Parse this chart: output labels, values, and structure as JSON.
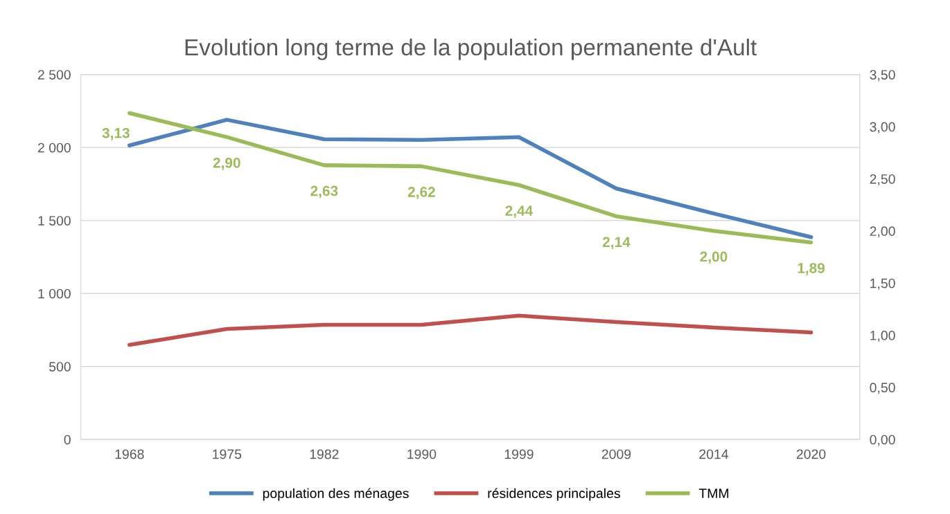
{
  "chart_data": {
    "type": "line",
    "title": "Evolution long terme de la population permanente d'Ault",
    "categories": [
      "1968",
      "1975",
      "1982",
      "1990",
      "1999",
      "2009",
      "2014",
      "2020"
    ],
    "series": [
      {
        "name": "population des ménages",
        "color": "#4f81bd",
        "values": [
          2014,
          2190,
          2057,
          2052,
          2071,
          1719,
          1548,
          1386
        ]
      },
      {
        "name": "résidences principales",
        "color": "#c0504d",
        "values": [
          648,
          757,
          786,
          786,
          848,
          805,
          767,
          733
        ]
      },
      {
        "name": "TMM",
        "color": "#9bbb59",
        "axis": "y2",
        "values": [
          3.13,
          2.9,
          2.63,
          2.62,
          2.44,
          2.14,
          2.0,
          1.89
        ],
        "value_labels": [
          "3,13",
          "2,90",
          "2,63",
          "2,62",
          "2,44",
          "2,14",
          "2,00",
          "1,89"
        ]
      }
    ],
    "ylim": [
      0,
      2500
    ],
    "yticks": [
      0,
      500,
      {
        "value": 1000,
        "label": "1 000"
      },
      {
        "value": 1500,
        "label": "1 500"
      },
      {
        "value": 2000,
        "label": "2 000"
      },
      {
        "value": 2500,
        "label": "2 500"
      }
    ],
    "y2lim": [
      0,
      3.5
    ],
    "y2ticks": [
      {
        "value": 0,
        "label": "0,00"
      },
      {
        "value": 0.5,
        "label": "0,50"
      },
      {
        "value": 1,
        "label": "1,00"
      },
      {
        "value": 1.5,
        "label": "1,50"
      },
      {
        "value": 2,
        "label": "2,00"
      },
      {
        "value": 2.5,
        "label": "2,50"
      },
      {
        "value": 3,
        "label": "3,00"
      },
      {
        "value": 3.5,
        "label": "3,50"
      }
    ],
    "grid": "y",
    "legend": "bottom",
    "marker": "none",
    "line_style": "solid"
  }
}
